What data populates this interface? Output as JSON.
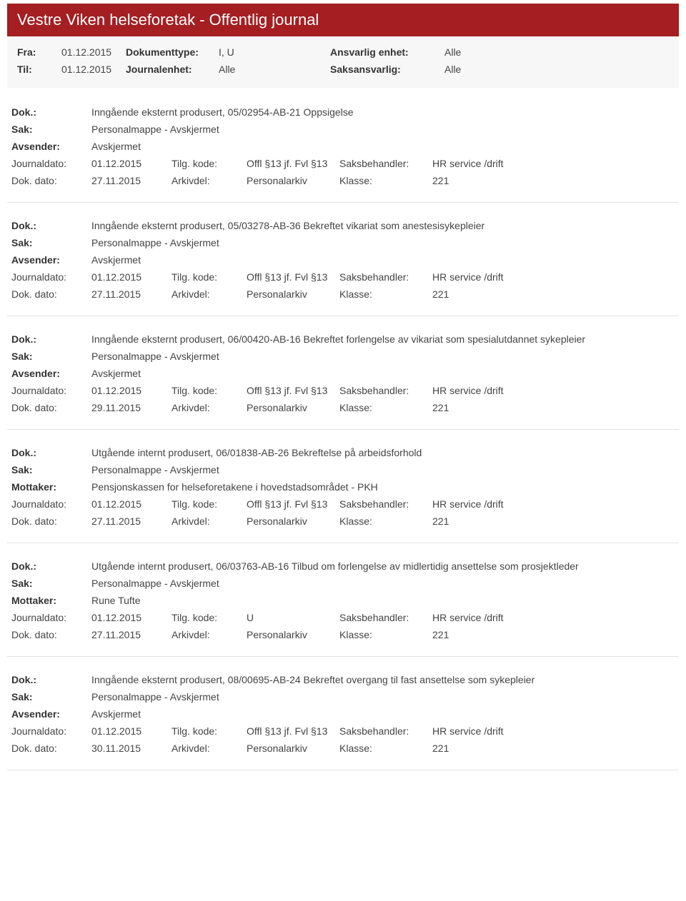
{
  "header": {
    "title": "Vestre Viken helseforetak - Offentlig journal"
  },
  "filters": {
    "fra_label": "Fra:",
    "fra_value": "01.12.2015",
    "doktype_label": "Dokumenttype:",
    "doktype_value": "I, U",
    "ansvarlig_label": "Ansvarlig enhet:",
    "ansvarlig_value": "Alle",
    "til_label": "Til:",
    "til_value": "01.12.2015",
    "journalenhet_label": "Journalenhet:",
    "journalenhet_value": "Alle",
    "saksansvarlig_label": "Saksansvarlig:",
    "saksansvarlig_value": "Alle"
  },
  "labels": {
    "dok": "Dok.:",
    "sak": "Sak:",
    "avsender": "Avsender:",
    "mottaker": "Mottaker:",
    "journaldato": "Journaldato:",
    "dokdato": "Dok. dato:",
    "tilgkode": "Tilg. kode:",
    "arkivdel": "Arkivdel:",
    "saksbehandler": "Saksbehandler:",
    "klasse": "Klasse:"
  },
  "entries": [
    {
      "dok": "Inngående eksternt produsert, 05/02954-AB-21 Oppsigelse",
      "sak": "Personalmappe - Avskjermet",
      "party_label": "Avsender:",
      "party_value": "Avskjermet",
      "journaldato": "01.12.2015",
      "tilgkode": "Offl §13 jf. Fvl §13",
      "saksbehandler": "HR service /drift",
      "dokdato": "27.11.2015",
      "arkivdel": "Personalarkiv",
      "klasse": "221"
    },
    {
      "dok": "Inngående eksternt produsert, 05/03278-AB-36 Bekreftet vikariat som anestesisykepleier",
      "sak": "Personalmappe - Avskjermet",
      "party_label": "Avsender:",
      "party_value": "Avskjermet",
      "journaldato": "01.12.2015",
      "tilgkode": "Offl §13 jf. Fvl §13",
      "saksbehandler": "HR service /drift",
      "dokdato": "27.11.2015",
      "arkivdel": "Personalarkiv",
      "klasse": "221"
    },
    {
      "dok": "Inngående eksternt produsert, 06/00420-AB-16 Bekreftet forlengelse av vikariat som spesialutdannet sykepleier",
      "sak": "Personalmappe - Avskjermet",
      "party_label": "Avsender:",
      "party_value": "Avskjermet",
      "journaldato": "01.12.2015",
      "tilgkode": "Offl §13 jf. Fvl §13",
      "saksbehandler": "HR service /drift",
      "dokdato": "29.11.2015",
      "arkivdel": "Personalarkiv",
      "klasse": "221"
    },
    {
      "dok": "Utgående internt produsert, 06/01838-AB-26 Bekreftelse på arbeidsforhold",
      "sak": "Personalmappe - Avskjermet",
      "party_label": "Mottaker:",
      "party_value": "Pensjonskassen for helseforetakene i hovedstadsområdet - PKH",
      "journaldato": "01.12.2015",
      "tilgkode": "Offl §13 jf. Fvl §13",
      "saksbehandler": "HR service /drift",
      "dokdato": "27.11.2015",
      "arkivdel": "Personalarkiv",
      "klasse": "221"
    },
    {
      "dok": "Utgående internt produsert, 06/03763-AB-16 Tilbud om forlengelse av midlertidig ansettelse som prosjektleder",
      "sak": "Personalmappe - Avskjermet",
      "party_label": "Mottaker:",
      "party_value": "Rune Tufte",
      "journaldato": "01.12.2015",
      "tilgkode": "U",
      "saksbehandler": "HR service /drift",
      "dokdato": "27.11.2015",
      "arkivdel": "Personalarkiv",
      "klasse": "221"
    },
    {
      "dok": "Inngående eksternt produsert, 08/00695-AB-24 Bekreftet overgang til fast ansettelse som sykepleier",
      "sak": "Personalmappe - Avskjermet",
      "party_label": "Avsender:",
      "party_value": "Avskjermet",
      "journaldato": "01.12.2015",
      "tilgkode": "Offl §13 jf. Fvl §13",
      "saksbehandler": "HR service /drift",
      "dokdato": "30.11.2015",
      "arkivdel": "Personalarkiv",
      "klasse": "221"
    }
  ],
  "colors": {
    "header_bg": "#a41e22",
    "header_text": "#ffffff",
    "filter_bg": "#f7f7f7",
    "body_text": "#333333",
    "value_text": "#444444",
    "divider": "#e2e2e2"
  }
}
